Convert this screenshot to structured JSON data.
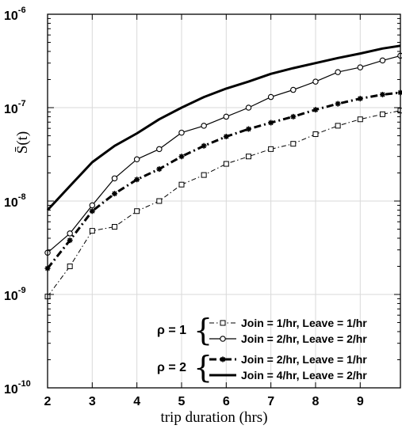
{
  "chart_data": {
    "type": "line",
    "xlabel": "trip duration (hrs)",
    "ylabel": "S̄(t)",
    "xlim": [
      2,
      9.9
    ],
    "ylim": [
      1e-10,
      1e-06
    ],
    "y_scale": "log",
    "x_ticks": [
      "2",
      "3",
      "4",
      "5",
      "6",
      "7",
      "8",
      "9"
    ],
    "y_ticks": [
      {
        "base": "10",
        "exp": "-10"
      },
      {
        "base": "10",
        "exp": "-9"
      },
      {
        "base": "10",
        "exp": "-8"
      },
      {
        "base": "10",
        "exp": "-7"
      },
      {
        "base": "10",
        "exp": "-6"
      }
    ],
    "legend_location": "bottom-right",
    "legend_groups": [
      {
        "label": "ρ = 1",
        "series": [
          0,
          1
        ]
      },
      {
        "label": "ρ = 2",
        "series": [
          2,
          3
        ]
      }
    ],
    "series": [
      {
        "name": "Join = 1/hr, Leave = 1/hr",
        "style": "dashdot-square",
        "x": [
          2,
          2.5,
          3,
          3.5,
          4,
          4.5,
          5,
          5.5,
          6,
          6.5,
          7,
          7.5,
          8,
          8.5,
          9,
          9.5,
          9.9
        ],
        "y": [
          9.5e-10,
          2e-09,
          4.8e-09,
          5.3e-09,
          7.8e-09,
          1e-08,
          1.5e-08,
          1.9e-08,
          2.5e-08,
          3e-08,
          3.6e-08,
          4.1e-08,
          5.2e-08,
          6.4e-08,
          7.5e-08,
          8.5e-08,
          9.3e-08
        ]
      },
      {
        "name": "Join = 2/hr, Leave = 2/hr",
        "style": "solid-circle",
        "x": [
          2,
          2.5,
          3,
          3.5,
          4,
          4.5,
          5,
          5.5,
          6,
          6.5,
          7,
          7.5,
          8,
          8.5,
          9,
          9.5,
          9.9
        ],
        "y": [
          2.8e-09,
          4.5e-09,
          9e-09,
          1.75e-08,
          2.8e-08,
          3.6e-08,
          5.4e-08,
          6.4e-08,
          8e-08,
          1e-07,
          1.3e-07,
          1.55e-07,
          1.9e-07,
          2.4e-07,
          2.7e-07,
          3.2e-07,
          3.6e-07
        ]
      },
      {
        "name": "Join = 2/hr, Leave = 1/hr",
        "style": "thick-dashdot-star",
        "x": [
          2,
          2.5,
          3,
          3.5,
          4,
          4.5,
          5,
          5.5,
          6,
          6.5,
          7,
          7.5,
          8,
          8.5,
          9,
          9.5,
          9.9
        ],
        "y": [
          1.9e-09,
          3.8e-09,
          7.8e-09,
          1.2e-08,
          1.7e-08,
          2.2e-08,
          3e-08,
          3.9e-08,
          4.9e-08,
          5.9e-08,
          6.9e-08,
          8e-08,
          9.5e-08,
          1.1e-07,
          1.25e-07,
          1.38e-07,
          1.45e-07
        ]
      },
      {
        "name": "Join = 4/hr, Leave = 2/hr",
        "style": "thick-solid",
        "x": [
          2,
          2.5,
          3,
          3.5,
          4,
          4.5,
          5,
          5.5,
          6,
          6.5,
          7,
          7.5,
          8,
          8.5,
          9,
          9.5,
          9.9
        ],
        "y": [
          8e-09,
          1.45e-08,
          2.6e-08,
          3.9e-08,
          5.3e-08,
          7.5e-08,
          1e-07,
          1.3e-07,
          1.6e-07,
          1.9e-07,
          2.3e-07,
          2.65e-07,
          3e-07,
          3.4e-07,
          3.8e-07,
          4.3e-07,
          4.6e-07
        ]
      }
    ]
  }
}
